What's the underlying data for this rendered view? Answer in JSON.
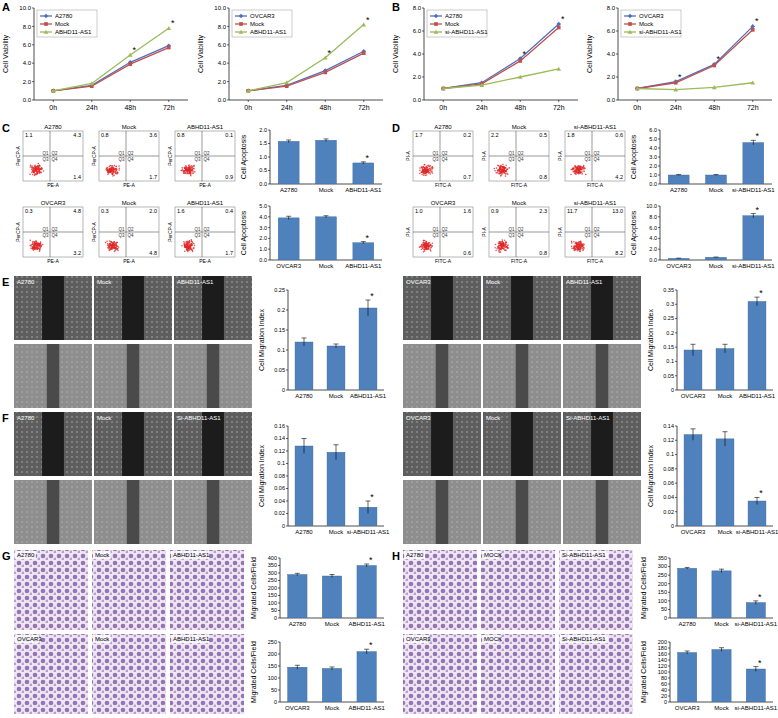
{
  "panel_labels": [
    "A",
    "B",
    "C",
    "D",
    "E",
    "F",
    "G",
    "H"
  ],
  "chart_data": [
    {
      "type": "line",
      "y_label": "Cell Viability",
      "categories": [
        "0h",
        "24h",
        "48h",
        "72h"
      ],
      "series": [
        {
          "name": "A2780",
          "color": "#4f6fbf",
          "marker": "diamond",
          "values": [
            1.0,
            1.6,
            4.1,
            5.9
          ]
        },
        {
          "name": "Mock",
          "color": "#c0504d",
          "marker": "square",
          "values": [
            1.0,
            1.5,
            3.9,
            5.7
          ]
        },
        {
          "name": "ABHD11-AS1",
          "color": "#9bbb59",
          "marker": "triangle",
          "values": [
            1.0,
            1.8,
            4.9,
            7.8
          ]
        }
      ],
      "ylim": [
        0,
        10
      ],
      "yticks": [
        {
          "value": 0,
          "label": "0.0"
        },
        {
          "value": 2,
          "label": "2.0"
        },
        {
          "value": 4,
          "label": "4.0"
        },
        {
          "value": 6,
          "label": "6.0"
        },
        {
          "value": 8,
          "label": "8.0"
        },
        {
          "value": 10,
          "label": "10.0"
        }
      ],
      "significance": [
        null,
        null,
        "*",
        "*"
      ],
      "legend": "upper left",
      "grid": false
    },
    {
      "type": "line",
      "y_label": "Cell Viability",
      "categories": [
        "0h",
        "24h",
        "48h",
        "72h"
      ],
      "series": [
        {
          "name": "OVCAR3",
          "color": "#4f6fbf",
          "marker": "diamond",
          "values": [
            1.0,
            1.6,
            3.2,
            5.3
          ]
        },
        {
          "name": "Mock",
          "color": "#c0504d",
          "marker": "square",
          "values": [
            1.0,
            1.5,
            3.0,
            5.1
          ]
        },
        {
          "name": "ABHD11-AS1",
          "color": "#9bbb59",
          "marker": "triangle",
          "values": [
            1.0,
            1.9,
            4.6,
            8.2
          ]
        }
      ],
      "ylim": [
        0,
        10
      ],
      "yticks": [
        {
          "value": 0,
          "label": "0.0"
        },
        {
          "value": 2,
          "label": "2.0"
        },
        {
          "value": 4,
          "label": "4.0"
        },
        {
          "value": 6,
          "label": "6.0"
        },
        {
          "value": 8,
          "label": "8.0"
        },
        {
          "value": 10,
          "label": "10.0"
        }
      ],
      "significance": [
        null,
        null,
        "*",
        "*"
      ],
      "legend": "upper left",
      "grid": false
    },
    {
      "type": "line",
      "y_label": "Cell Viability",
      "categories": [
        "0h",
        "24h",
        "48h",
        "72h"
      ],
      "series": [
        {
          "name": "A2780",
          "color": "#4f6fbf",
          "marker": "diamond",
          "values": [
            1.0,
            1.5,
            3.6,
            6.6
          ]
        },
        {
          "name": "Mock",
          "color": "#c0504d",
          "marker": "square",
          "values": [
            1.0,
            1.4,
            3.4,
            6.3
          ]
        },
        {
          "name": "si-ABHD11-AS1",
          "color": "#9bbb59",
          "marker": "triangle",
          "values": [
            1.0,
            1.3,
            2.0,
            2.7
          ]
        }
      ],
      "ylim": [
        0,
        8
      ],
      "yticks": [
        {
          "value": 0,
          "label": "0.0"
        },
        {
          "value": 2,
          "label": "2.0"
        },
        {
          "value": 4,
          "label": "4.0"
        },
        {
          "value": 6,
          "label": "6.0"
        },
        {
          "value": 8,
          "label": "8.0"
        }
      ],
      "significance": [
        null,
        null,
        "*",
        "*"
      ],
      "legend": "upper left",
      "grid": false
    },
    {
      "type": "line",
      "y_label": "Cell Viability",
      "categories": [
        "0h",
        "24h",
        "48h",
        "72h"
      ],
      "series": [
        {
          "name": "OVCAR3",
          "color": "#4f6fbf",
          "marker": "diamond",
          "values": [
            1.0,
            1.6,
            3.1,
            6.4
          ]
        },
        {
          "name": "Mock",
          "color": "#c0504d",
          "marker": "square",
          "values": [
            1.0,
            1.5,
            3.0,
            6.1
          ]
        },
        {
          "name": "si-ABHD11-AS1",
          "color": "#9bbb59",
          "marker": "triangle",
          "values": [
            1.0,
            0.9,
            1.1,
            1.5
          ]
        }
      ],
      "ylim": [
        0,
        8
      ],
      "yticks": [
        {
          "value": 0,
          "label": "0.0"
        },
        {
          "value": 2,
          "label": "2.0"
        },
        {
          "value": 4,
          "label": "4.0"
        },
        {
          "value": 6,
          "label": "6.0"
        },
        {
          "value": 8,
          "label": "8.0"
        }
      ],
      "significance": [
        null,
        "*",
        "*",
        "*"
      ],
      "legend": "upper left",
      "grid": false
    },
    {
      "type": "bar",
      "y_label": "Cell Apoptosis",
      "categories": [
        "A2780",
        "Mock",
        "ABHD11-AS1"
      ],
      "values": [
        1.58,
        1.62,
        0.78
      ],
      "errors": [
        0.05,
        0.05,
        0.04
      ],
      "color": "#4f81bd",
      "ylim": [
        0,
        2
      ],
      "yticks": [
        {
          "value": 0,
          "label": "0.0"
        },
        {
          "value": 0.5,
          "label": "0.5"
        },
        {
          "value": 1,
          "label": "1.0"
        },
        {
          "value": 1.5,
          "label": "1.5"
        },
        {
          "value": 2,
          "label": "2.0"
        }
      ],
      "significance": [
        null,
        null,
        "*"
      ],
      "grid": false
    },
    {
      "type": "bar",
      "y_label": "Cell Apoptosis",
      "categories": [
        "OVCAR3",
        "Mock",
        "ABHD11-AS1"
      ],
      "values": [
        3.9,
        4.0,
        1.6
      ],
      "errors": [
        0.15,
        0.1,
        0.1
      ],
      "color": "#4f81bd",
      "ylim": [
        0,
        5
      ],
      "yticks": [
        {
          "value": 0,
          "label": "0.0"
        },
        {
          "value": 1,
          "label": "1.0"
        },
        {
          "value": 2,
          "label": "2.0"
        },
        {
          "value": 3,
          "label": "3.0"
        },
        {
          "value": 4,
          "label": "4.0"
        },
        {
          "value": 5,
          "label": "5.0"
        }
      ],
      "significance": [
        null,
        null,
        "*"
      ],
      "grid": false
    },
    {
      "type": "bar",
      "y_label": "Cell Apoptosis",
      "categories": [
        "A2780",
        "Mock",
        "si-ABHD11-AS1"
      ],
      "values": [
        1.0,
        1.0,
        4.6
      ],
      "errors": [
        0.05,
        0.05,
        0.25
      ],
      "color": "#4f81bd",
      "ylim": [
        0,
        6
      ],
      "yticks": [
        {
          "value": 0,
          "label": "0.0"
        },
        {
          "value": 1,
          "label": "1.0"
        },
        {
          "value": 2,
          "label": "2.0"
        },
        {
          "value": 3,
          "label": "3.0"
        },
        {
          "value": 4,
          "label": "4.0"
        },
        {
          "value": 5,
          "label": "5.0"
        },
        {
          "value": 6,
          "label": "6.0"
        }
      ],
      "significance": [
        null,
        null,
        "*"
      ],
      "grid": false
    },
    {
      "type": "bar",
      "y_label": "Cell Apoptosis",
      "categories": [
        "OVCAR3",
        "Mock",
        "si-ABHD11-AS1"
      ],
      "values": [
        0.3,
        0.5,
        8.2
      ],
      "errors": [
        0.05,
        0.05,
        0.4
      ],
      "color": "#4f81bd",
      "ylim": [
        0,
        10
      ],
      "yticks": [
        {
          "value": 0,
          "label": "0.0"
        },
        {
          "value": 2,
          "label": "2.0"
        },
        {
          "value": 4,
          "label": "4.0"
        },
        {
          "value": 6,
          "label": "6.0"
        },
        {
          "value": 8,
          "label": "8.0"
        },
        {
          "value": 10,
          "label": "10.0"
        }
      ],
      "significance": [
        null,
        null,
        "*"
      ],
      "grid": false
    },
    {
      "type": "bar",
      "y_label": "Cell Migration Index",
      "categories": [
        "A2780",
        "Mock",
        "ABHD11-AS1"
      ],
      "values": [
        0.12,
        0.11,
        0.205
      ],
      "errors": [
        0.01,
        0.005,
        0.02
      ],
      "color": "#4f81bd",
      "ylim": [
        0,
        0.25
      ],
      "yticks": [
        0,
        0.05,
        0.1,
        0.15,
        0.2,
        0.25
      ],
      "significance": [
        null,
        null,
        "*"
      ],
      "grid": false
    },
    {
      "type": "bar",
      "y_label": "Cell Migration Index",
      "categories": [
        "OVCAR3",
        "Mock",
        "ABHD11-AS1"
      ],
      "values": [
        0.14,
        0.145,
        0.31
      ],
      "errors": [
        0.02,
        0.015,
        0.015
      ],
      "color": "#4f81bd",
      "ylim": [
        0,
        0.35
      ],
      "yticks": [
        0,
        0.05,
        0.1,
        0.15,
        0.2,
        0.25,
        0.3,
        0.35
      ],
      "significance": [
        null,
        null,
        "*"
      ],
      "grid": false
    },
    {
      "type": "bar",
      "y_label": "Cell Migration Index",
      "categories": [
        "A2780",
        "Mock",
        "si-ABHD11-AS1"
      ],
      "values": [
        0.128,
        0.118,
        0.03
      ],
      "errors": [
        0.012,
        0.012,
        0.01
      ],
      "color": "#4f81bd",
      "ylim": [
        0,
        0.16
      ],
      "yticks": [
        0,
        0.02,
        0.04,
        0.06,
        0.08,
        0.1,
        0.12,
        0.14,
        0.16
      ],
      "significance": [
        null,
        null,
        "*"
      ],
      "grid": false
    },
    {
      "type": "bar",
      "y_label": "Cell Migration Index",
      "categories": [
        "OVCAR3",
        "Mock",
        "si-ABHD11-AS1"
      ],
      "values": [
        0.128,
        0.122,
        0.035
      ],
      "errors": [
        0.008,
        0.01,
        0.005
      ],
      "color": "#4f81bd",
      "ylim": [
        0,
        0.14
      ],
      "yticks": [
        0,
        0.02,
        0.04,
        0.06,
        0.08,
        0.1,
        0.12,
        0.14
      ],
      "significance": [
        null,
        null,
        "*"
      ],
      "grid": false
    },
    {
      "type": "bar",
      "y_label": "Migrated Cells/Field",
      "categories": [
        "A2780",
        "Mock",
        "ABHD11-AS1"
      ],
      "values": [
        290,
        280,
        350
      ],
      "errors": [
        8,
        10,
        10
      ],
      "color": "#4f81bd",
      "ylim": [
        0,
        400
      ],
      "yticks": [
        0,
        50,
        100,
        150,
        200,
        250,
        300,
        350,
        400
      ],
      "significance": [
        null,
        null,
        "*"
      ],
      "grid": false
    },
    {
      "type": "bar",
      "y_label": "Migrated Cells/Field",
      "categories": [
        "OVCAR3",
        "Mock",
        "ABHD11-AS1"
      ],
      "values": [
        145,
        140,
        210
      ],
      "errors": [
        8,
        6,
        10
      ],
      "color": "#4f81bd",
      "ylim": [
        0,
        250
      ],
      "yticks": [
        0,
        50,
        100,
        150,
        200,
        250
      ],
      "significance": [
        null,
        null,
        "*"
      ],
      "grid": false
    },
    {
      "type": "bar",
      "y_label": "Migrated Cells/Field",
      "categories": [
        "A2780",
        "Mock",
        "si-ABHD11-AS1"
      ],
      "values": [
        290,
        275,
        90
      ],
      "errors": [
        5,
        10,
        10
      ],
      "color": "#4f81bd",
      "ylim": [
        0,
        350
      ],
      "yticks": [
        0,
        50,
        100,
        150,
        200,
        250,
        300,
        350
      ],
      "significance": [
        null,
        null,
        "*"
      ],
      "grid": false
    },
    {
      "type": "bar",
      "y_label": "Migrated Cells/Field",
      "categories": [
        "OVCAR3",
        "Mock",
        "si-ABHD11-AS1"
      ],
      "values": [
        165,
        175,
        110
      ],
      "errors": [
        5,
        6,
        8
      ],
      "color": "#4f81bd",
      "ylim": [
        0,
        200
      ],
      "yticks": [
        0,
        20,
        40,
        60,
        80,
        100,
        120,
        140,
        160,
        180,
        200
      ],
      "significance": [
        null,
        null,
        "*"
      ],
      "grid": false
    }
  ],
  "image_groups": [
    {
      "kind": "flow",
      "x_label": "PE-A",
      "y_label": "PerCP-A",
      "quadrant_names": [
        "Q1",
        "Q2",
        "Q3",
        "Q4"
      ],
      "plots": [
        {
          "sample": "A2780",
          "quadrants": [
            "1.1",
            "4.3",
            "1.4"
          ]
        },
        {
          "sample": "Mock",
          "quadrants": [
            "0.8",
            "3.6",
            "1.7"
          ]
        },
        {
          "sample": "ABHD11-AS1",
          "quadrants": [
            "0.8",
            "0.1",
            "0.9"
          ]
        }
      ]
    },
    {
      "kind": "flow",
      "x_label": "PE-A",
      "y_label": "PerCP-A",
      "quadrant_names": [
        "Q1",
        "Q2",
        "Q3",
        "Q4"
      ],
      "plots": [
        {
          "sample": "OVCAR3",
          "quadrants": [
            "0.3",
            "4.8",
            "3.2"
          ]
        },
        {
          "sample": "Mock",
          "quadrants": [
            "0.3",
            "2.0",
            "4.8"
          ]
        },
        {
          "sample": "ABHD11-AS1",
          "quadrants": [
            "1.6",
            "0.4",
            "1.7"
          ]
        }
      ]
    },
    {
      "kind": "flow",
      "x_label": "FITC-A",
      "y_label": "PI-A",
      "quadrant_names": [
        "Q1",
        "Q2",
        "Q3",
        "Q4"
      ],
      "plots": [
        {
          "sample": "A2780",
          "quadrants": [
            "1.7",
            "0.2",
            "0.7"
          ]
        },
        {
          "sample": "Mock",
          "quadrants": [
            "2.2",
            "0.5",
            "0.8"
          ]
        },
        {
          "sample": "si-ABHD11-AS1",
          "quadrants": [
            "1.8",
            "0.6",
            "4.2"
          ]
        }
      ]
    },
    {
      "kind": "flow",
      "x_label": "FITC-A",
      "y_label": "PI-A",
      "quadrant_names": [
        "Q1",
        "Q2",
        "Q3",
        "Q4"
      ],
      "plots": [
        {
          "sample": "OVCAR3",
          "quadrants": [
            "1.0",
            "1.6",
            "0.6"
          ]
        },
        {
          "sample": "Mock",
          "quadrants": [
            "0.9",
            "2.3",
            "0.8"
          ]
        },
        {
          "sample": "si-ABHD11-AS1",
          "quadrants": [
            "11.7",
            "13.0",
            "8.2"
          ]
        }
      ]
    },
    {
      "kind": "scratch",
      "samples": [
        "A2780",
        "Mock",
        "ABHD11-AS1"
      ]
    },
    {
      "kind": "scratch",
      "samples": [
        "OVCAR3",
        "Mock",
        "ABHD11-AS1"
      ]
    },
    {
      "kind": "scratch",
      "samples": [
        "A2780",
        "Mock",
        "Si-ABHD11-AS1"
      ]
    },
    {
      "kind": "scratch",
      "samples": [
        "OVCAR3",
        "Mock",
        "Si-ABHD11-AS1"
      ]
    },
    {
      "kind": "transwell",
      "samples": [
        "A2780",
        "Mock",
        "ABHD11-AS1"
      ]
    },
    {
      "kind": "transwell",
      "samples": [
        "OVCAR3",
        "Mock",
        "ABHD11-AS1"
      ]
    },
    {
      "kind": "transwell",
      "samples": [
        "A2780",
        "MOCK",
        "Si-ABHD11-AS1"
      ]
    },
    {
      "kind": "transwell",
      "samples": [
        "OVCAR3",
        "MOCK",
        "Si-ABHD11-AS1"
      ]
    }
  ]
}
